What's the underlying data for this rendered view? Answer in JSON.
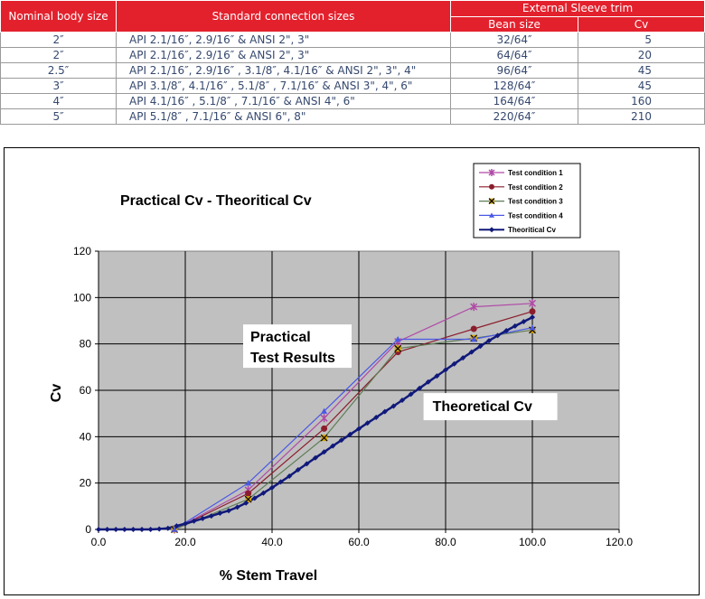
{
  "table": {
    "headers": {
      "nominal_body_size": "Nominal body size",
      "standard_connection_sizes": "Standard connection sizes",
      "external_sleeve_trim": "External Sleeve trim",
      "bean_size": "Bean size",
      "cv": "Cv"
    },
    "rows": [
      {
        "size": "2″",
        "connections": "API 2.1/16″, 2.9/16″ & ANSI 2\", 3\"",
        "bean": "32/64″",
        "cv": "5"
      },
      {
        "size": "2″",
        "connections": "API 2.1/16″, 2.9/16″ & ANSI 2\", 3\"",
        "bean": "64/64″",
        "cv": "20"
      },
      {
        "size": "2.5″",
        "connections": "API 2.1/16″, 2.9/16″ , 3.1/8″, 4.1/16″ & ANSI 2\", 3\", 4\"",
        "bean": "96/64″",
        "cv": "45"
      },
      {
        "size": "3″",
        "connections": "API 3.1/8″, 4.1/16″ , 5.1/8″ , 7.1/16″ & ANSI 3\", 4\", 6\"",
        "bean": "128/64″",
        "cv": "45"
      },
      {
        "size": "4″",
        "connections": "API 4.1/16″ , 5.1/8″ , 7.1/16″ & ANSI 4\", 6\"",
        "bean": "164/64″",
        "cv": "160"
      },
      {
        "size": "5″",
        "connections": "API 5.1/8″ , 7.1/16″ & ANSI 6\", 8\"",
        "bean": "220/64″",
        "cv": "210"
      }
    ]
  },
  "chart_data": {
    "type": "line",
    "title": "Practical Cv - Theoritical Cv",
    "xlabel": "% Stem Travel",
    "ylabel": "Cv",
    "xlim": [
      0,
      120
    ],
    "ylim": [
      0,
      120
    ],
    "xticks": [
      "0.0",
      "20.0",
      "40.0",
      "60.0",
      "80.0",
      "100.0",
      "120.0"
    ],
    "yticks": [
      "0",
      "20",
      "40",
      "60",
      "80",
      "100",
      "120"
    ],
    "grid": true,
    "legend_position": "top-right",
    "annotations": [
      {
        "text": "Practical",
        "x": 35,
        "y": 81
      },
      {
        "text": "Test Results",
        "x": 35,
        "y": 72
      },
      {
        "text": "Theoretical Cv",
        "x": 77,
        "y": 51
      }
    ],
    "series": [
      {
        "name": "Test condition 1",
        "color": "#b04aa6",
        "marker": "star",
        "x": [
          17.5,
          34.5,
          52,
          69,
          86.5,
          100
        ],
        "y": [
          0,
          17,
          48,
          81,
          96,
          97.5
        ]
      },
      {
        "name": "Test condition 2",
        "color": "#8b1d2c",
        "marker": "circle",
        "x": [
          17.5,
          34.5,
          52,
          69,
          86.5,
          100
        ],
        "y": [
          0,
          15.5,
          43.5,
          76.5,
          86.5,
          94
        ]
      },
      {
        "name": "Test condition 3",
        "color": "#5e7d56",
        "marker": "x-box",
        "x": [
          17.5,
          34.5,
          52,
          69,
          86.5,
          100
        ],
        "y": [
          0,
          13,
          39.5,
          78,
          82.5,
          86
        ]
      },
      {
        "name": "Test condition 4",
        "color": "#4a58e6",
        "marker": "triangle",
        "x": [
          17.5,
          34.5,
          52,
          69,
          86.5,
          100
        ],
        "y": [
          0,
          20,
          51,
          82,
          82,
          87
        ]
      },
      {
        "name": "Theoritical Cv",
        "color": "#10197a",
        "marker": "diamond",
        "x": [
          0,
          2,
          4,
          6,
          8,
          10,
          12,
          14,
          16,
          18,
          20,
          22,
          24,
          26,
          28,
          30,
          32,
          34,
          36,
          38,
          40,
          42,
          44,
          46,
          48,
          50,
          52,
          54,
          56,
          58,
          60,
          62,
          64,
          66,
          68,
          70,
          72,
          74,
          76,
          78,
          80,
          82,
          84,
          86,
          88,
          90,
          92,
          94,
          96,
          98,
          100
        ],
        "y": [
          0,
          0,
          0,
          0,
          0,
          0,
          0,
          0.2,
          0.5,
          1.5,
          2.5,
          3.6,
          4.7,
          5.8,
          7,
          8.1,
          9.6,
          11.4,
          13.5,
          15.7,
          18,
          20.5,
          23,
          25.7,
          28.3,
          30.9,
          33.4,
          36,
          38.5,
          41,
          43.4,
          45.9,
          48.3,
          50.8,
          53.2,
          55.7,
          58.3,
          60.9,
          63.6,
          66.2,
          68.8,
          71.4,
          74,
          76.5,
          79,
          81.4,
          83.6,
          85.7,
          87.7,
          89.6,
          91.5
        ]
      }
    ]
  }
}
